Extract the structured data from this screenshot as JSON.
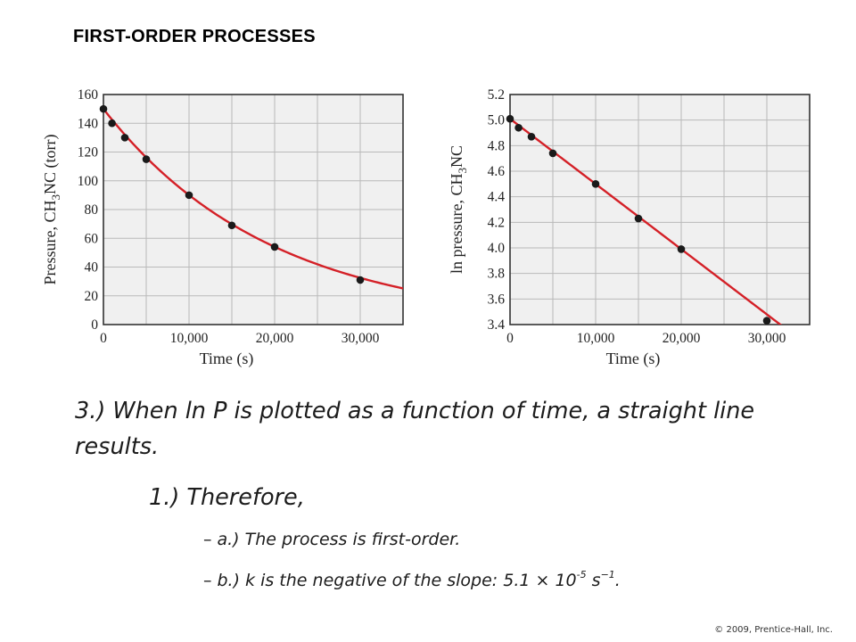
{
  "slide": {
    "title": "FIRST-ORDER PROCESSES",
    "point3": "3.) When ln P is plotted as a function of time, a straight line results.",
    "sub1": "1.) Therefore,",
    "bullet_a": "a.) The process is first-order.",
    "bullet_b_prefix": "b.) k is the negative of the slope:  5.1 × 10",
    "bullet_b_exp1": "-5",
    "bullet_b_unit": " s",
    "bullet_b_exp2": "−1",
    "bullet_b_end": ".",
    "copyright": "© 2009, Prentice-Hall, Inc.",
    "bullet_dash": "–"
  },
  "colors": {
    "curve": "#d42027",
    "point": "#1a1a1a",
    "plot_bg": "#f0f0f0",
    "grid": "#b9b9b9",
    "frame": "#333333"
  },
  "chart_data": [
    {
      "type": "line",
      "xlabel": "Time (s)",
      "ylabel_parts": [
        "Pressure, CH",
        "3",
        "NC (torr)"
      ],
      "xlim": [
        0,
        35000
      ],
      "ylim": [
        0,
        160
      ],
      "xticks": [
        0,
        10000,
        20000,
        30000
      ],
      "xtick_labels": [
        "0",
        "10,000",
        "20,000",
        "30,000"
      ],
      "yticks": [
        0,
        20,
        40,
        60,
        80,
        100,
        120,
        140,
        160
      ],
      "ytick_labels": [
        "0",
        "20",
        "40",
        "60",
        "80",
        "100",
        "120",
        "140",
        "160"
      ],
      "grid": true,
      "series": [
        {
          "x": [
            0,
            1000,
            2500,
            5000,
            10000,
            15000,
            20000,
            30000
          ],
          "y": [
            150,
            140,
            130,
            115,
            90,
            69,
            54,
            31
          ]
        }
      ],
      "fit": {
        "kind": "exponential",
        "p0": 150,
        "k": 5.1e-05,
        "x_end": 35000
      }
    },
    {
      "type": "line",
      "xlabel": "Time (s)",
      "ylabel_parts": [
        "ln pressure, CH",
        "3",
        "NC"
      ],
      "xlim": [
        0,
        35000
      ],
      "ylim": [
        3.4,
        5.2
      ],
      "xticks": [
        0,
        10000,
        20000,
        30000
      ],
      "xtick_labels": [
        "0",
        "10,000",
        "20,000",
        "30,000"
      ],
      "yticks": [
        3.4,
        3.6,
        3.8,
        4.0,
        4.2,
        4.4,
        4.6,
        4.8,
        5.0,
        5.2
      ],
      "ytick_labels": [
        "3.4",
        "3.6",
        "3.8",
        "4.0",
        "4.2",
        "4.4",
        "4.6",
        "4.8",
        "5.0",
        "5.2"
      ],
      "grid": true,
      "series": [
        {
          "x": [
            0,
            1000,
            2500,
            5000,
            10000,
            15000,
            20000,
            30000
          ],
          "y": [
            5.01,
            4.94,
            4.87,
            4.74,
            4.5,
            4.23,
            3.99,
            3.43
          ]
        }
      ],
      "fit": {
        "kind": "linear",
        "b": 5.01,
        "m": -5.1e-05,
        "x_end": 35000
      }
    }
  ]
}
